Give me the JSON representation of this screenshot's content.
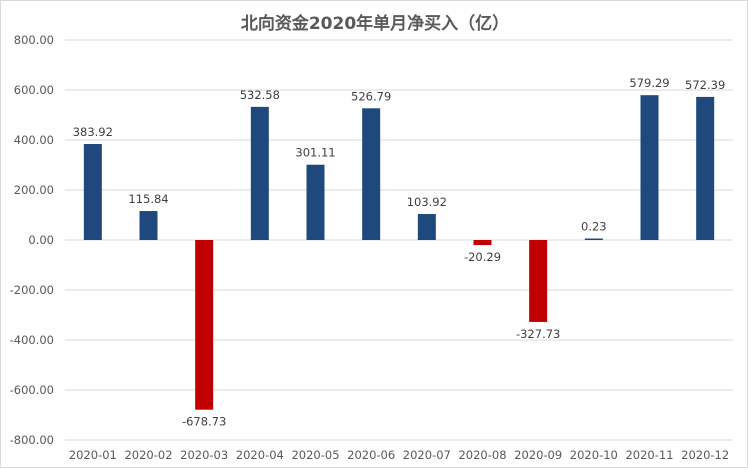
{
  "chart_data": {
    "type": "bar",
    "title": "北向资金2020年单月净买入（亿）",
    "xlabel": "",
    "ylabel": "",
    "categories": [
      "2020-01",
      "2020-02",
      "2020-03",
      "2020-04",
      "2020-05",
      "2020-06",
      "2020-07",
      "2020-08",
      "2020-09",
      "2020-10",
      "2020-11",
      "2020-12"
    ],
    "values": [
      383.92,
      115.84,
      -678.73,
      532.58,
      301.11,
      526.79,
      103.92,
      -20.29,
      -327.73,
      0.23,
      579.29,
      572.39
    ],
    "data_labels": [
      "383.92",
      "115.84",
      "-678.73",
      "532.58",
      "301.11",
      "526.79",
      "103.92",
      "-20.29",
      "-327.73",
      "0.23",
      "579.29",
      "572.39"
    ],
    "ylim": [
      -800,
      800
    ],
    "yticks": [
      800,
      600,
      400,
      200,
      0,
      -200,
      -400,
      -600,
      -800
    ],
    "ytick_labels": [
      "800.00",
      "600.00",
      "400.00",
      "200.00",
      "0.00",
      "-200.00",
      "-400.00",
      "-600.00",
      "-800.00"
    ],
    "grid": true,
    "legend": "none",
    "colors": {
      "positive": "#1f497d",
      "negative": "#c00000",
      "grid": "#d9d9d9",
      "axis_text": "#595959"
    }
  }
}
